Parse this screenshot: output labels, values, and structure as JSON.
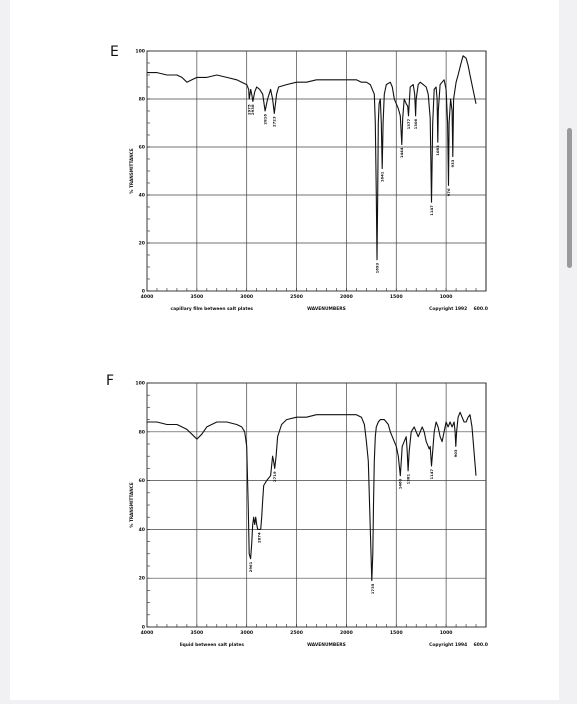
{
  "chart_data": [
    {
      "type": "line",
      "panel_label": "E",
      "xlabel": "WAVENUMBERS",
      "ylabel": "% TRANSMITTANCE",
      "x_reversed": true,
      "xlim": [
        4000,
        600
      ],
      "ylim": [
        0,
        100
      ],
      "x_ticks": [
        {
          "v": 4000,
          "label": "4000"
        },
        {
          "v": 3500,
          "label": "3500"
        },
        {
          "v": 3000,
          "label": "3000"
        },
        {
          "v": 2500,
          "label": "2500"
        },
        {
          "v": 2000,
          "label": "2000"
        },
        {
          "v": 1500,
          "label": "1500"
        },
        {
          "v": 1000,
          "label": "1000"
        }
      ],
      "x_end_label": "600.0",
      "y_ticks": [
        {
          "v": 100,
          "label": "100"
        },
        {
          "v": 80,
          "label": "80"
        },
        {
          "v": 60,
          "label": "60"
        },
        {
          "v": 40,
          "label": "40"
        },
        {
          "v": 20,
          "label": "20"
        },
        {
          "v": 0,
          "label": "0"
        }
      ],
      "caption_left": "capillary film between salt plates",
      "caption_right": "Copyright 1992",
      "annotations": [
        {
          "x": 2975,
          "y": 79,
          "label": "2975"
        },
        {
          "x": 2938,
          "y": 79,
          "label": "2938"
        },
        {
          "x": 2816,
          "y": 75,
          "label": "2816"
        },
        {
          "x": 2723,
          "y": 74,
          "label": "2723"
        },
        {
          "x": 1693,
          "y": 13,
          "label": "1693"
        },
        {
          "x": 1641,
          "y": 51,
          "label": "1641"
        },
        {
          "x": 1444,
          "y": 61,
          "label": "1444"
        },
        {
          "x": 1377,
          "y": 73,
          "label": "1377"
        },
        {
          "x": 1306,
          "y": 73,
          "label": "1306"
        },
        {
          "x": 1147,
          "y": 37,
          "label": "1147"
        },
        {
          "x": 1083,
          "y": 62,
          "label": "1083"
        },
        {
          "x": 976,
          "y": 44,
          "label": "976"
        },
        {
          "x": 933,
          "y": 56,
          "label": "933"
        }
      ],
      "series": [
        {
          "x": [
            4000,
            3900,
            3800,
            3700,
            3650,
            3600,
            3550,
            3500,
            3400,
            3300,
            3200,
            3100,
            3050,
            3000,
            2980,
            2975,
            2960,
            2950,
            2938,
            2920,
            2900,
            2870,
            2840,
            2816,
            2790,
            2760,
            2740,
            2723,
            2700,
            2680,
            2600,
            2500,
            2400,
            2300,
            2200,
            2100,
            2050,
            2000,
            1950,
            1900,
            1850,
            1800,
            1760,
            1740,
            1720,
            1710,
            1700,
            1693,
            1686,
            1680,
            1672,
            1660,
            1650,
            1641,
            1632,
            1620,
            1600,
            1560,
            1540,
            1520,
            1500,
            1480,
            1460,
            1444,
            1435,
            1420,
            1400,
            1385,
            1377,
            1370,
            1360,
            1330,
            1315,
            1306,
            1300,
            1280,
            1260,
            1230,
            1200,
            1180,
            1160,
            1147,
            1135,
            1120,
            1100,
            1090,
            1083,
            1078,
            1060,
            1040,
            1020,
            1000,
            985,
            976,
            970,
            955,
            940,
            933,
            925,
            900,
            880,
            850,
            830,
            800,
            780,
            760,
            740,
            720,
            700
          ],
          "y": [
            91,
            91,
            90,
            90,
            89,
            87,
            88,
            89,
            89,
            90,
            89,
            88,
            87,
            86,
            84,
            80,
            84,
            82,
            79,
            83,
            85,
            84,
            82,
            75,
            80,
            84,
            80,
            74,
            82,
            85,
            86,
            87,
            87,
            88,
            88,
            88,
            88,
            88,
            88,
            88,
            87,
            87,
            86,
            84,
            82,
            70,
            40,
            13,
            40,
            70,
            78,
            80,
            70,
            51,
            70,
            82,
            86,
            87,
            85,
            80,
            78,
            76,
            73,
            61,
            72,
            80,
            78,
            77,
            73,
            78,
            85,
            86,
            82,
            73,
            80,
            86,
            87,
            86,
            85,
            82,
            72,
            37,
            70,
            84,
            85,
            80,
            62,
            75,
            86,
            87,
            88,
            84,
            70,
            44,
            70,
            80,
            75,
            56,
            80,
            87,
            90,
            95,
            98,
            97,
            94,
            90,
            86,
            82,
            78
          ]
        }
      ]
    },
    {
      "type": "line",
      "panel_label": "F",
      "xlabel": "WAVENUMBERS",
      "ylabel": "% TRANSMITTANCE",
      "x_reversed": true,
      "xlim": [
        4000,
        600
      ],
      "ylim": [
        0,
        100
      ],
      "x_ticks": [
        {
          "v": 4000,
          "label": "4000"
        },
        {
          "v": 3500,
          "label": "3500"
        },
        {
          "v": 3000,
          "label": "3000"
        },
        {
          "v": 2500,
          "label": "2500"
        },
        {
          "v": 2000,
          "label": "2000"
        },
        {
          "v": 1500,
          "label": "1500"
        },
        {
          "v": 1000,
          "label": "1000"
        }
      ],
      "x_end_label": "600.0",
      "y_ticks": [
        {
          "v": 100,
          "label": "100"
        },
        {
          "v": 80,
          "label": "80"
        },
        {
          "v": 60,
          "label": "60"
        },
        {
          "v": 40,
          "label": "40"
        },
        {
          "v": 20,
          "label": "20"
        },
        {
          "v": 0,
          "label": "0"
        }
      ],
      "caption_left": "liquid between salt plates",
      "caption_right": "Copyright 1994",
      "annotations": [
        {
          "x": 2961,
          "y": 28,
          "label": "2961"
        },
        {
          "x": 2874,
          "y": 40,
          "label": "2874"
        },
        {
          "x": 2719,
          "y": 65,
          "label": "2719"
        },
        {
          "x": 1735,
          "y": 19,
          "label": "1735"
        },
        {
          "x": 1460,
          "y": 62,
          "label": "1460"
        },
        {
          "x": 1381,
          "y": 64,
          "label": "1381"
        },
        {
          "x": 1147,
          "y": 66,
          "label": "1147"
        },
        {
          "x": 903,
          "y": 74,
          "label": "903"
        }
      ],
      "series": [
        {
          "x": [
            4000,
            3900,
            3800,
            3700,
            3650,
            3600,
            3550,
            3500,
            3450,
            3400,
            3300,
            3200,
            3100,
            3050,
            3020,
            3000,
            2985,
            2975,
            2961,
            2950,
            2940,
            2930,
            2920,
            2910,
            2900,
            2890,
            2874,
            2860,
            2850,
            2840,
            2830,
            2800,
            2760,
            2740,
            2730,
            2719,
            2705,
            2690,
            2650,
            2600,
            2500,
            2400,
            2300,
            2200,
            2100,
            2000,
            1900,
            1850,
            1820,
            1800,
            1780,
            1760,
            1750,
            1745,
            1735,
            1728,
            1720,
            1710,
            1700,
            1680,
            1660,
            1640,
            1620,
            1600,
            1580,
            1560,
            1540,
            1520,
            1500,
            1480,
            1470,
            1460,
            1450,
            1440,
            1420,
            1400,
            1390,
            1381,
            1370,
            1350,
            1320,
            1300,
            1280,
            1260,
            1240,
            1220,
            1200,
            1180,
            1170,
            1160,
            1147,
            1135,
            1120,
            1100,
            1080,
            1060,
            1040,
            1020,
            1000,
            980,
            960,
            940,
            920,
            910,
            903,
            895,
            880,
            860,
            840,
            820,
            800,
            780,
            760,
            740,
            720,
            700
          ],
          "y": [
            84,
            84,
            83,
            83,
            82,
            81,
            79,
            77,
            79,
            82,
            84,
            84,
            83,
            82,
            80,
            74,
            50,
            30,
            28,
            34,
            42,
            45,
            42,
            45,
            42,
            40,
            40,
            40,
            45,
            52,
            58,
            60,
            62,
            70,
            68,
            65,
            70,
            78,
            83,
            85,
            86,
            86,
            87,
            87,
            87,
            87,
            87,
            86,
            83,
            76,
            68,
            40,
            26,
            19,
            30,
            50,
            68,
            78,
            82,
            84,
            85,
            85,
            85,
            84,
            83,
            80,
            78,
            76,
            74,
            70,
            66,
            62,
            68,
            74,
            76,
            78,
            72,
            64,
            72,
            80,
            82,
            80,
            78,
            80,
            82,
            80,
            76,
            74,
            73,
            74,
            66,
            72,
            80,
            84,
            82,
            78,
            76,
            80,
            84,
            82,
            84,
            82,
            84,
            80,
            74,
            80,
            86,
            88,
            86,
            84,
            84,
            86,
            87,
            82,
            72,
            62
          ]
        }
      ]
    }
  ]
}
